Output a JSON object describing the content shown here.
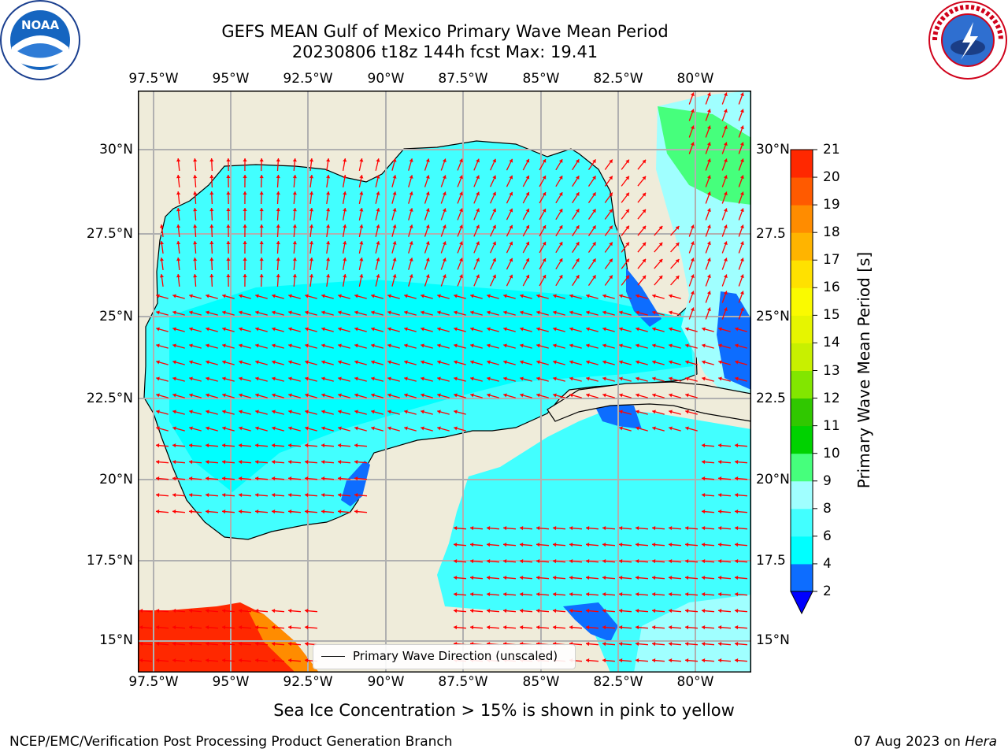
{
  "title": {
    "line1": "GEFS MEAN Gulf of Mexico Primary Wave Mean Period",
    "line2": "20230806 t18z 144h fcst   Max: 19.41"
  },
  "map": {
    "lon_labels": [
      "97.5°W",
      "95°W",
      "92.5°W",
      "90°W",
      "87.5°W",
      "85°W",
      "82.5°W",
      "80°W"
    ],
    "lat_labels": [
      "30°N",
      "27.5°N",
      "25°N",
      "22.5°N",
      "20°N",
      "17.5°N",
      "15°N"
    ],
    "lat_labels_right": [
      "30°N",
      "27.5",
      "25°N",
      "22.5",
      "20°N",
      "17.5",
      "15°N"
    ],
    "lon_range": [
      -98,
      -78.2
    ],
    "lat_range": [
      14,
      31.6
    ],
    "land_color": "#efecda",
    "grid_color": "#b0b0b0",
    "arrow_color": "#ff0000"
  },
  "colorbar": {
    "label": "Primary Wave Mean Period [s]",
    "ticks": [
      "2",
      "4",
      "6",
      "8",
      "9",
      "10",
      "11",
      "12",
      "13",
      "14",
      "15",
      "16",
      "17",
      "18",
      "19",
      "20",
      "21"
    ],
    "colors": [
      "#0d6dff",
      "#00ffff",
      "#42ffff",
      "#a0ffff",
      "#46ff7c",
      "#00d200",
      "#30c800",
      "#82e600",
      "#c8f000",
      "#e6f500",
      "#fafa00",
      "#ffe100",
      "#ffb400",
      "#ff8c00",
      "#ff5a00",
      "#ff2800"
    ],
    "extend_color": "#0000ff"
  },
  "legend": {
    "label": "Primary Wave Direction (unscaled)"
  },
  "note": "Sea Ice Concentration > 15% is shown in pink to yellow",
  "footer": {
    "left": "NCEP/EMC/Verification Post Processing Product Generation Branch",
    "date": "07 Aug 2023 on",
    "host": "Hera"
  },
  "logos": {
    "left": "NOAA",
    "right": "NATIONAL WEATHER SERVICE"
  }
}
